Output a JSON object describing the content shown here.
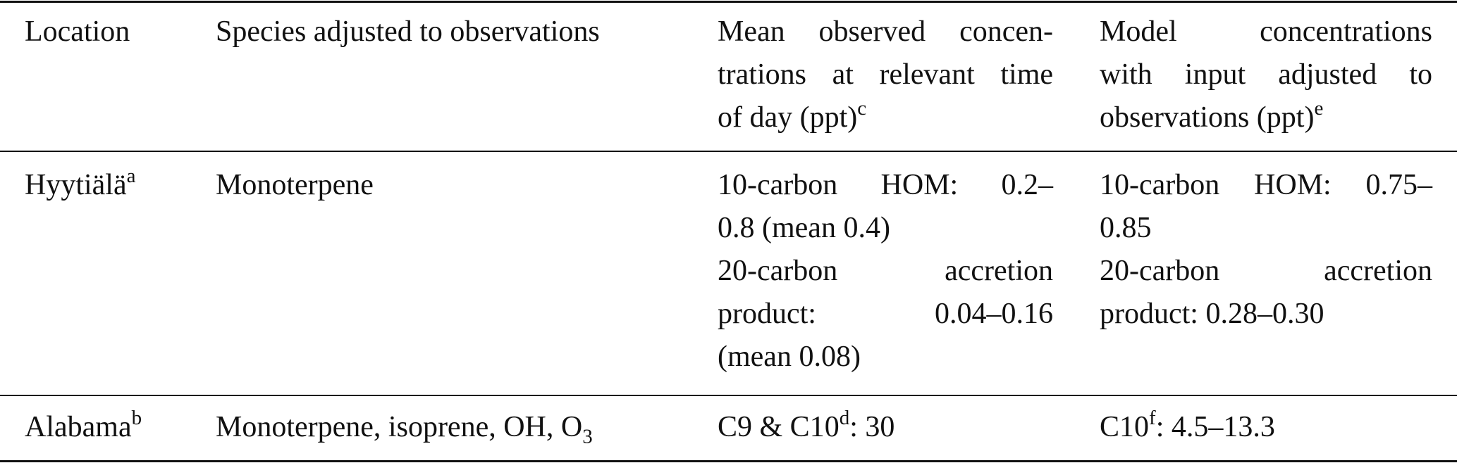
{
  "headers": {
    "location": "Location",
    "species": "Species adjusted to observations",
    "observed": {
      "line1": "Mean observed concen-",
      "line2": "trations at relevant time",
      "line3": "of day (ppt)",
      "sup": "c"
    },
    "model": {
      "line1": "Model concentrations",
      "line2": "with input adjusted to",
      "line3": "observations (ppt)",
      "sup": "e"
    }
  },
  "rows": [
    {
      "location": "Hyytiälä",
      "location_sup": "a",
      "species": "Monoterpene",
      "observed": {
        "line1": "10-carbon HOM: 0.2–",
        "line2": "0.8 (mean 0.4)",
        "line3": "20-carbon accretion",
        "line4": "product: 0.04–0.16",
        "line5": "(mean 0.08)"
      },
      "model": {
        "line1": "10-carbon HOM: 0.75–",
        "line2": "0.85",
        "line3": "20-carbon accretion",
        "line4": "product: 0.28–0.30"
      }
    },
    {
      "location": "Alabama",
      "location_sup": "b",
      "species_prefix": "Monoterpene, isoprene, OH, O",
      "species_sub": "3",
      "observed_prefix": "C9 & C10",
      "observed_sup": "d",
      "observed_value": ": 30",
      "model_prefix": "C10",
      "model_sup": "f",
      "model_value": ": 4.5–13.3"
    }
  ]
}
